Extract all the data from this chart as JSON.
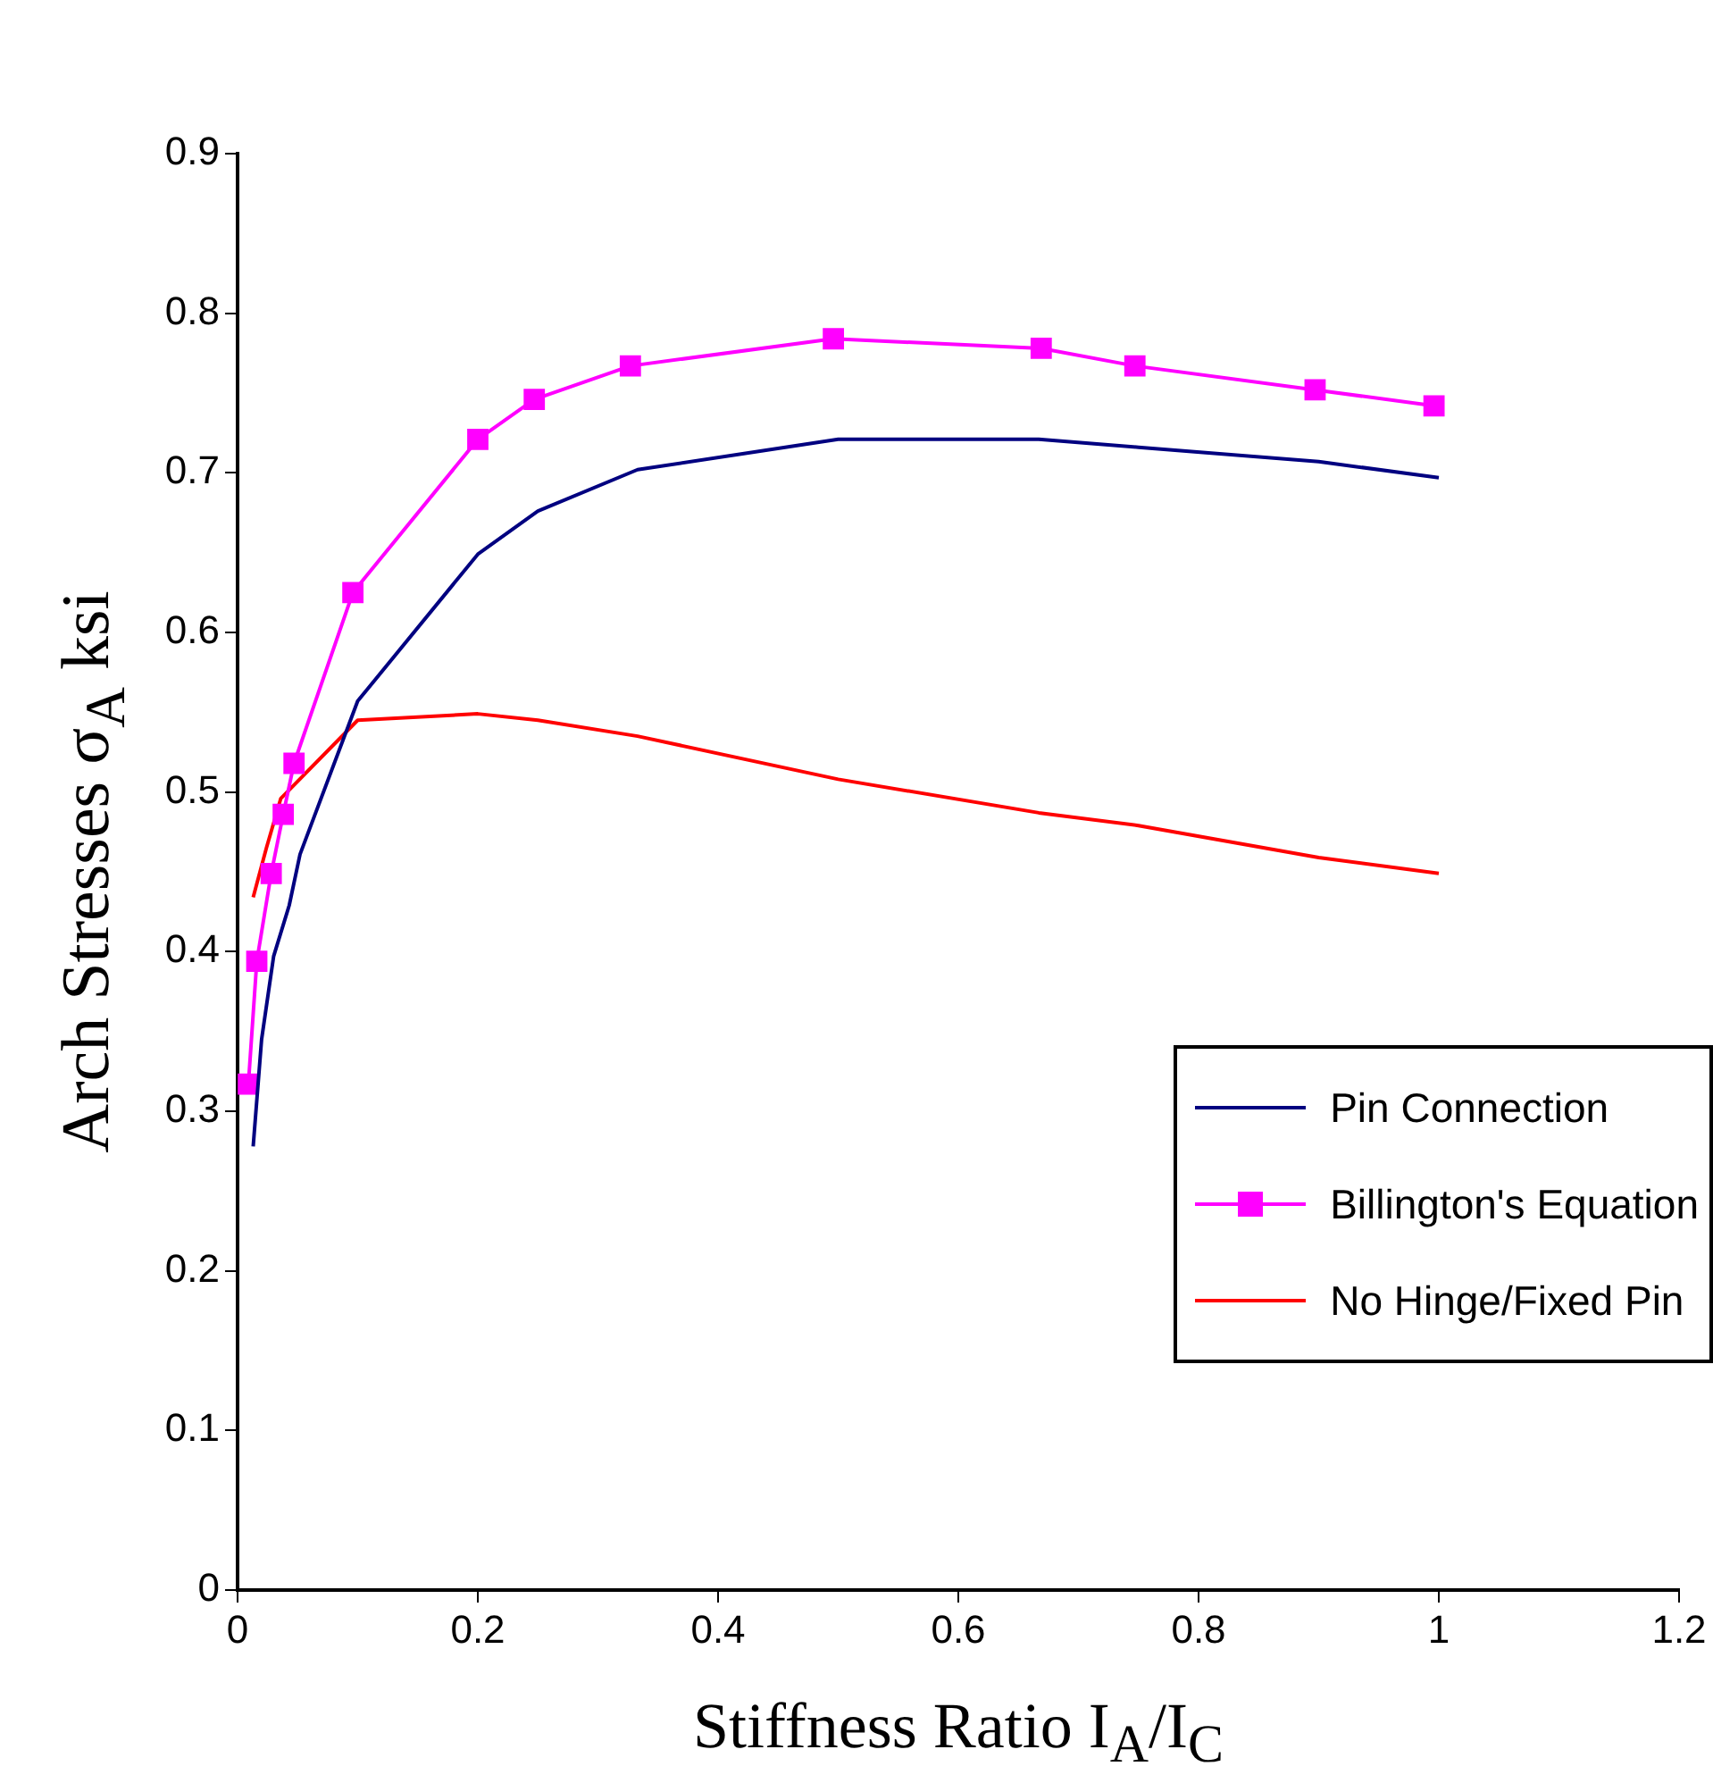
{
  "chart_data": {
    "type": "line",
    "xlabel": "Stiffness Ratio I$_{A}$/I$_{C}$",
    "ylabel": "Arch Stresses σ$_{A}$  ksi",
    "xlim": [
      0,
      1.2
    ],
    "xticks": [
      0,
      0.2,
      0.4,
      0.6,
      0.8,
      1,
      1.2
    ],
    "ylim": [
      0,
      0.9
    ],
    "yticks": [
      0,
      0.1,
      0.2,
      0.3,
      0.4,
      0.5,
      0.6,
      0.7,
      0.8,
      0.9
    ],
    "grid": false,
    "legend": "right",
    "line_style": "solid",
    "series": [
      {
        "name": "Pin Connection",
        "color": "#000080",
        "marker": "none",
        "x": [
          0.013,
          0.02,
          0.03,
          0.043,
          0.052,
          0.1,
          0.2,
          0.25,
          0.333,
          0.5,
          0.667,
          0.75,
          0.9,
          1
        ],
        "values": [
          0.278,
          0.345,
          0.397,
          0.429,
          0.461,
          0.557,
          0.649,
          0.676,
          0.702,
          0.721,
          0.721,
          0.716,
          0.707,
          0.697
        ]
      },
      {
        "name": "Billington's Equation",
        "color": "#ff00ff",
        "marker": "square",
        "x": [
          0.009,
          0.016,
          0.028,
          0.038,
          0.047,
          0.096,
          0.2,
          0.247,
          0.327,
          0.496,
          0.669,
          0.747,
          0.897,
          0.996
        ],
        "values": [
          0.317,
          0.394,
          0.449,
          0.486,
          0.518,
          0.625,
          0.721,
          0.746,
          0.767,
          0.784,
          0.778,
          0.767,
          0.752,
          0.742
        ]
      },
      {
        "name": "No Hinge/Fixed Pin",
        "color": "#ff0000",
        "marker": "none",
        "x": [
          0.013,
          0.024,
          0.036,
          0.047,
          0.1,
          0.2,
          0.25,
          0.333,
          0.5,
          0.667,
          0.75,
          0.9,
          1
        ],
        "values": [
          0.434,
          0.465,
          0.496,
          null,
          0.545,
          0.549,
          0.545,
          0.535,
          0.508,
          0.487,
          0.479,
          0.459,
          0.449
        ]
      }
    ]
  }
}
